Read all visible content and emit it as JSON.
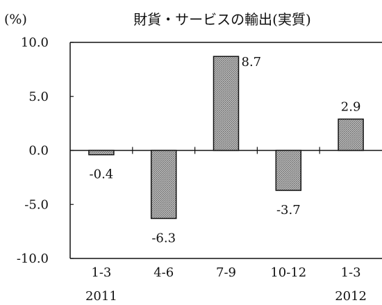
{
  "chart_data": {
    "type": "bar",
    "title": "財貨・サービスの輸出(実質)",
    "ylabel": "(%)",
    "xlabel": "",
    "categories": [
      "1-3",
      "4-6",
      "7-9",
      "10-12",
      "1-3"
    ],
    "year_labels": [
      "2011",
      "",
      "",
      "",
      "2012"
    ],
    "values": [
      -0.4,
      -6.3,
      8.7,
      -3.7,
      2.9
    ],
    "data_labels": [
      "-0.4",
      "-6.3",
      "8.7",
      "-3.7",
      "2.9"
    ],
    "ylim": [
      -10.0,
      10.0
    ],
    "yticks": [
      10.0,
      5.0,
      0.0,
      -5.0,
      -10.0
    ],
    "ytick_labels": [
      "10.0",
      "5.0",
      "0.0",
      "-5.0",
      "-10.0"
    ],
    "grid": false,
    "legend": "none",
    "bar_color": "#9a9a9a"
  }
}
